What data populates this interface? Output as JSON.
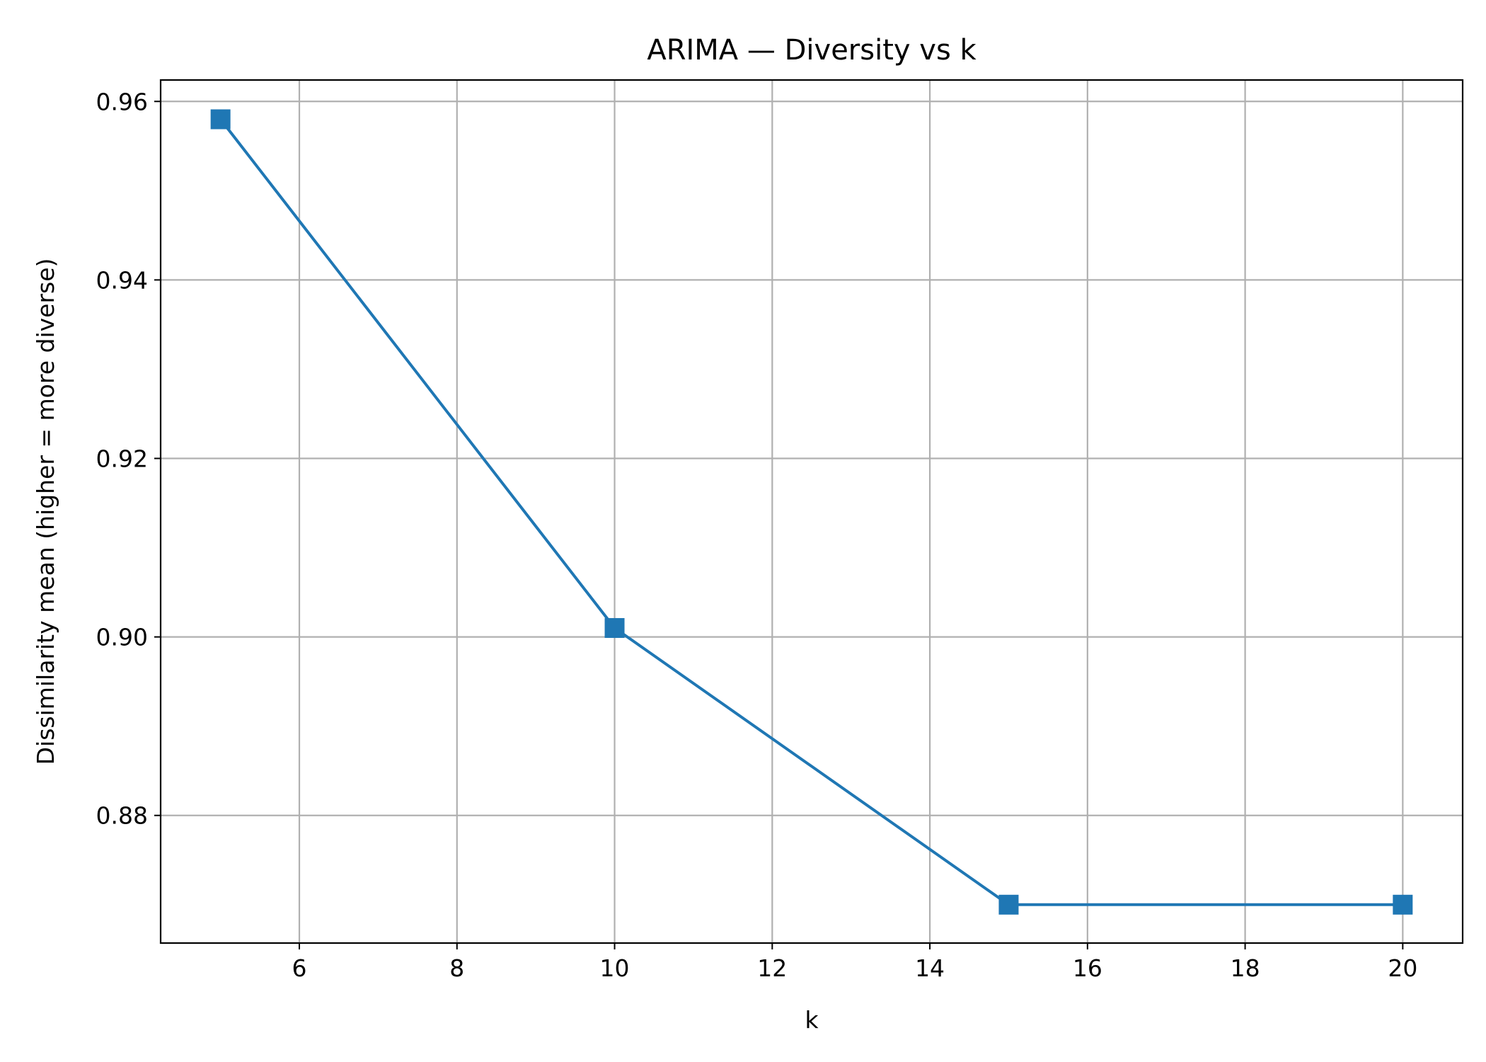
{
  "chart_data": {
    "type": "line",
    "title": "ARIMA — Diversity vs k",
    "xlabel": "k",
    "ylabel": "Dissimilarity mean (higher = more diverse)",
    "xlim": [
      4.24,
      20.76
    ],
    "ylim": [
      0.8657,
      0.9624
    ],
    "xticks": [
      6,
      8,
      10,
      12,
      14,
      16,
      18,
      20
    ],
    "xtick_labels": [
      "6",
      "8",
      "10",
      "12",
      "14",
      "16",
      "18",
      "20"
    ],
    "yticks": [
      0.88,
      0.9,
      0.92,
      0.94,
      0.96
    ],
    "ytick_labels": [
      "0.88",
      "0.90",
      "0.92",
      "0.94",
      "0.96"
    ],
    "grid": true,
    "series": [
      {
        "x": [
          5,
          10,
          15,
          20
        ],
        "y": [
          0.958,
          0.901,
          0.87,
          0.87
        ],
        "marker": "square",
        "color": "#1f77b4"
      }
    ]
  }
}
